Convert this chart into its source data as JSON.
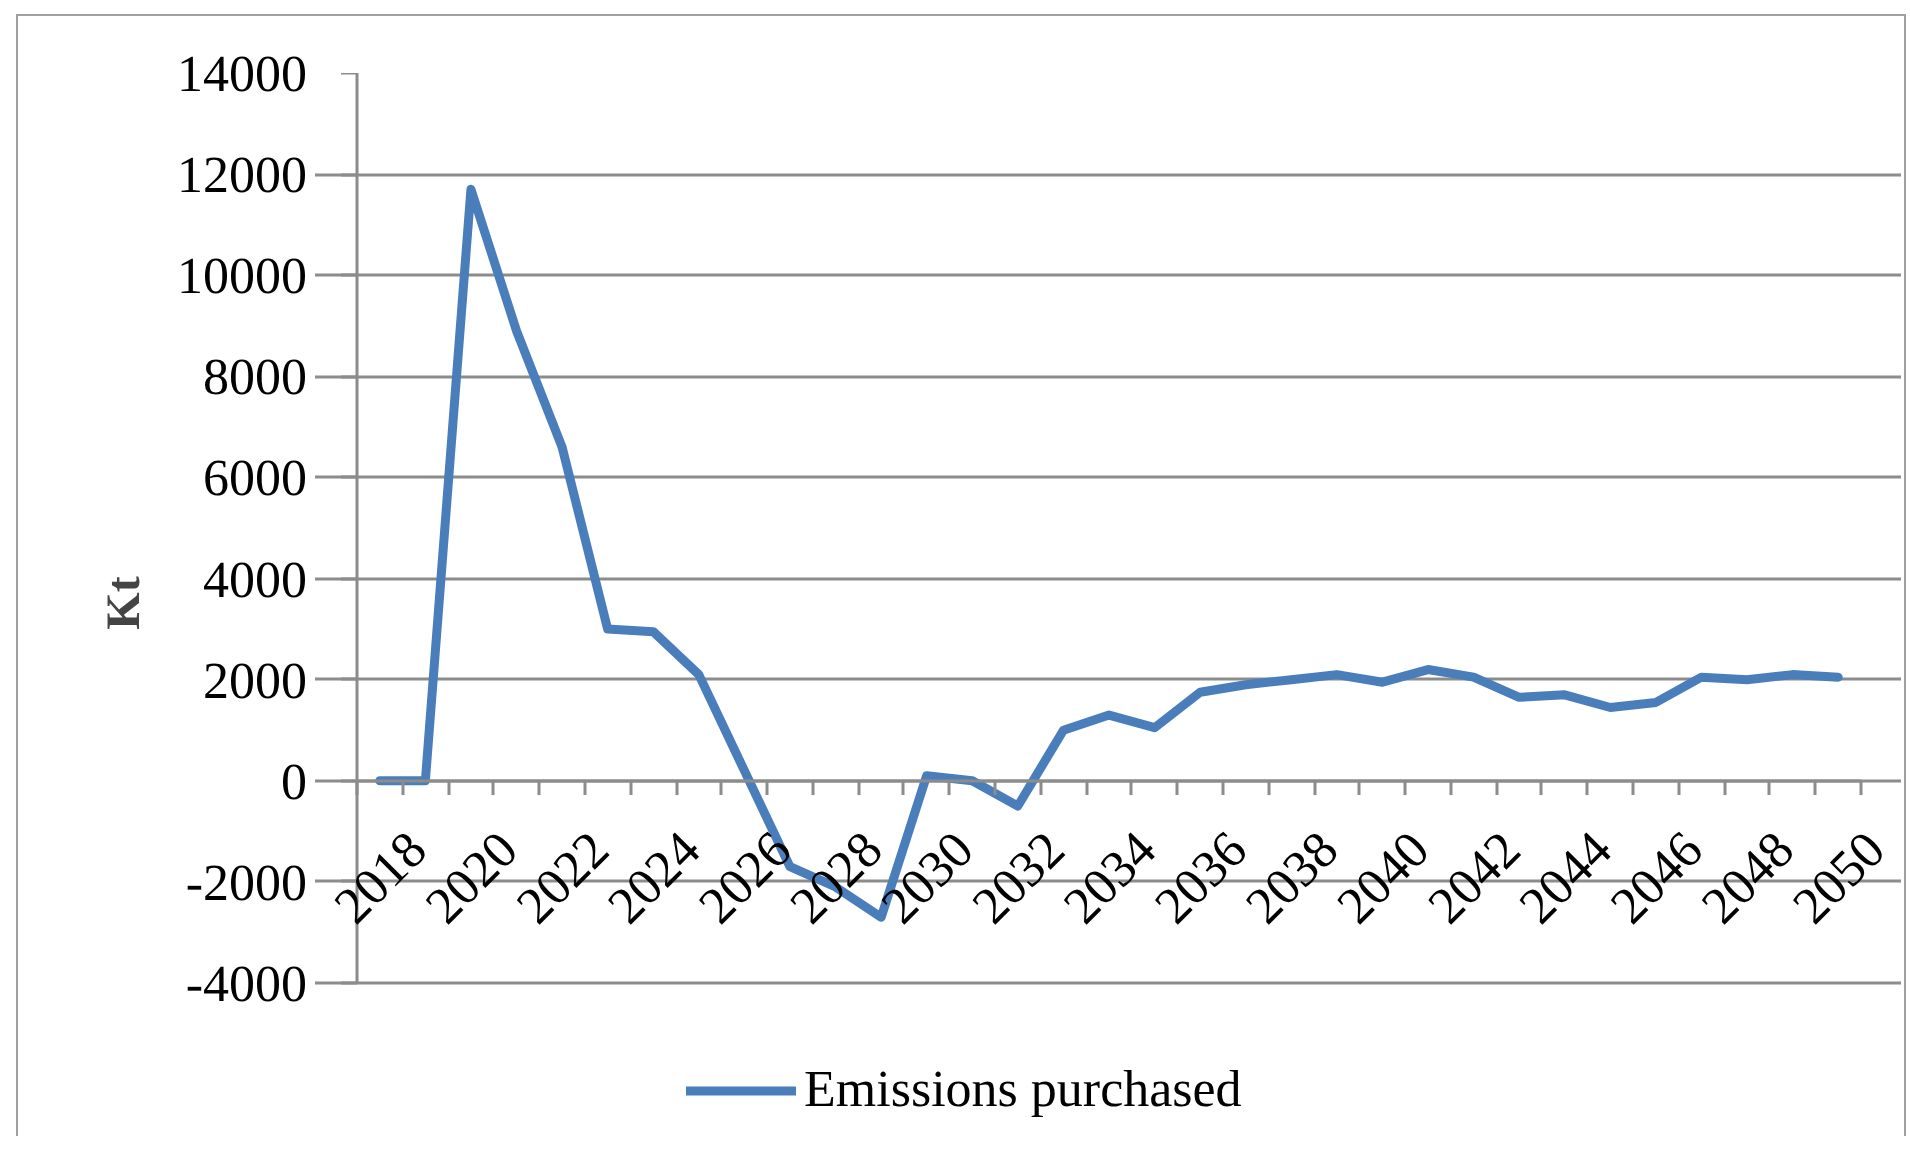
{
  "chart_data": {
    "type": "line",
    "ylabel": "Kt",
    "categories": [
      "2018",
      null,
      "2020",
      null,
      "2022",
      null,
      "2024",
      null,
      "2026",
      null,
      "2028",
      null,
      "2030",
      null,
      "2032",
      null,
      "2034",
      null,
      "2036",
      null,
      "2038",
      null,
      "2040",
      null,
      "2042",
      null,
      "2044",
      null,
      "2046",
      null,
      "2048",
      null,
      "2050"
    ],
    "series": [
      {
        "name": "Emissions purchased",
        "color": "#4a7ebb",
        "values": [
          0,
          0,
          11700,
          8900,
          6600,
          3000,
          2950,
          2100,
          200,
          -1700,
          -2100,
          -2700,
          100,
          0,
          -500,
          1000,
          1300,
          1050,
          1750,
          1900,
          2000,
          2100,
          1950,
          2200,
          2050,
          1650,
          1700,
          1450,
          1550,
          2050,
          2000,
          2100,
          2050
        ]
      }
    ],
    "ylim": [
      -4000,
      14000
    ],
    "yticks": [
      -4000,
      -2000,
      0,
      2000,
      4000,
      6000,
      8000,
      10000,
      12000,
      14000
    ],
    "grid": "y",
    "legend": "bottom",
    "marker": "none",
    "line_style": "solid"
  }
}
